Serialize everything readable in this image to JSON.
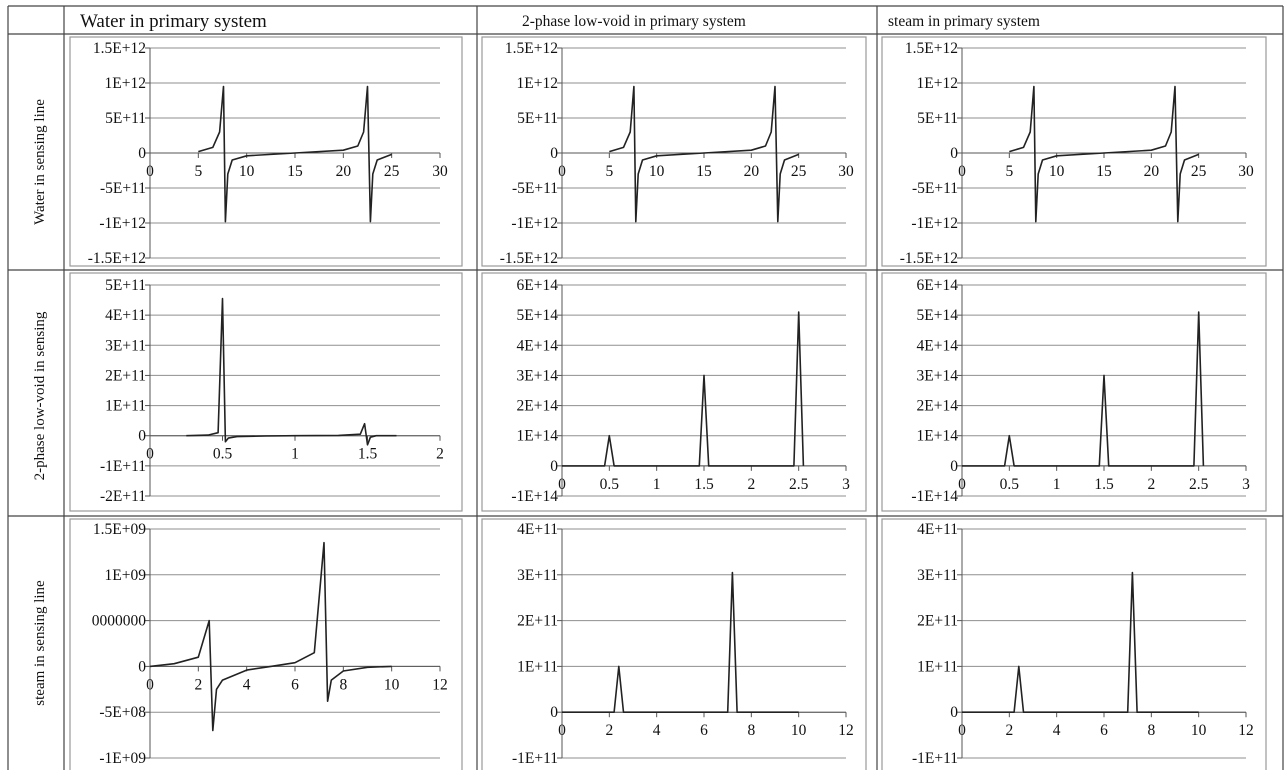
{
  "header": {
    "cols": [
      "Water in primary system",
      "2-phase low-void in primary system",
      "steam in primary system"
    ],
    "rows": [
      "Water in sensing line",
      "2-phase low-void in sensing",
      "steam in sensing line"
    ]
  },
  "colors": {
    "line": "#222222",
    "grid": "#8f8f8f",
    "border": "#555555",
    "frame": "#9a9a9a"
  },
  "chart_data": [
    {
      "type": "line",
      "row": 0,
      "col": 0,
      "title": "",
      "xlabel": "",
      "ylabel": "",
      "xlim": [
        0,
        30
      ],
      "ylim": [
        -1500000000000.0,
        1500000000000.0
      ],
      "x_ticks": [
        "0",
        "5",
        "10",
        "15",
        "20",
        "25",
        "30"
      ],
      "y_ticks": [
        "1.5E+12",
        "1E+12",
        "5E+11",
        "0",
        "-5E+11",
        "-1E+12",
        "-1.5E+12"
      ],
      "series": [
        {
          "x": [
            5,
            6.5,
            7.2,
            7.6,
            7.8,
            8.05,
            8.5,
            10,
            15,
            20,
            21.5,
            22.1,
            22.5,
            22.8,
            23.05,
            23.5,
            25
          ],
          "y": [
            20000000000.0,
            80000000000.0,
            300000000000.0,
            950000000000.0,
            -980000000000.0,
            -300000000000.0,
            -100000000000.0,
            -40000000000.0,
            0,
            40000000000.0,
            100000000000.0,
            300000000000.0,
            950000000000.0,
            -980000000000.0,
            -300000000000.0,
            -100000000000.0,
            -20000000000.0
          ]
        }
      ]
    },
    {
      "type": "line",
      "row": 0,
      "col": 1,
      "title": "",
      "xlabel": "",
      "ylabel": "",
      "xlim": [
        0,
        30
      ],
      "ylim": [
        -1500000000000.0,
        1500000000000.0
      ],
      "x_ticks": [
        "0",
        "5",
        "10",
        "15",
        "20",
        "25",
        "30"
      ],
      "y_ticks": [
        "1.5E+12",
        "1E+12",
        "5E+11",
        "0",
        "-5E+11",
        "-1E+12",
        "-1.5E+12"
      ],
      "series": [
        {
          "x": [
            5,
            6.5,
            7.2,
            7.6,
            7.8,
            8.05,
            8.5,
            10,
            15,
            20,
            21.5,
            22.1,
            22.5,
            22.8,
            23.05,
            23.5,
            25
          ],
          "y": [
            20000000000.0,
            80000000000.0,
            300000000000.0,
            950000000000.0,
            -980000000000.0,
            -300000000000.0,
            -100000000000.0,
            -40000000000.0,
            0,
            40000000000.0,
            100000000000.0,
            300000000000.0,
            950000000000.0,
            -980000000000.0,
            -300000000000.0,
            -100000000000.0,
            -20000000000.0
          ]
        }
      ]
    },
    {
      "type": "line",
      "row": 0,
      "col": 2,
      "title": "",
      "xlabel": "",
      "ylabel": "",
      "xlim": [
        0,
        30
      ],
      "ylim": [
        -1500000000000.0,
        1500000000000.0
      ],
      "x_ticks": [
        "0",
        "5",
        "10",
        "15",
        "20",
        "25",
        "30"
      ],
      "y_ticks": [
        "1.5E+12",
        "1E+12",
        "5E+11",
        "0",
        "-5E+11",
        "-1E+12",
        "-1.5E+12"
      ],
      "series": [
        {
          "x": [
            5,
            6.5,
            7.2,
            7.6,
            7.8,
            8.05,
            8.5,
            10,
            15,
            20,
            21.5,
            22.1,
            22.5,
            22.8,
            23.05,
            23.5,
            25
          ],
          "y": [
            20000000000.0,
            80000000000.0,
            300000000000.0,
            950000000000.0,
            -980000000000.0,
            -300000000000.0,
            -100000000000.0,
            -40000000000.0,
            0,
            40000000000.0,
            100000000000.0,
            300000000000.0,
            950000000000.0,
            -980000000000.0,
            -300000000000.0,
            -100000000000.0,
            -20000000000.0
          ]
        }
      ]
    },
    {
      "type": "line",
      "row": 1,
      "col": 0,
      "title": "",
      "xlabel": "",
      "ylabel": "",
      "xlim": [
        0,
        2
      ],
      "ylim": [
        -200000000000.0,
        500000000000.0
      ],
      "x_ticks": [
        "0",
        "0.5",
        "1",
        "1.5",
        "2"
      ],
      "y_ticks": [
        "5E+11",
        "4E+11",
        "3E+11",
        "2E+11",
        "1E+11",
        "0",
        "-1E+11",
        "-2E+11"
      ],
      "series": [
        {
          "x": [
            0.25,
            0.4,
            0.47,
            0.5,
            0.52,
            0.54,
            0.6,
            0.8,
            1.0,
            1.3,
            1.45,
            1.48,
            1.5,
            1.52,
            1.56,
            1.7
          ],
          "y": [
            0,
            2000000000.0,
            10000000000.0,
            455000000000.0,
            -20000000000.0,
            -8000000000.0,
            -3000000000.0,
            -1000000000.0,
            0,
            1000000000.0,
            5000000000.0,
            40000000000.0,
            -30000000000.0,
            -5000000000.0,
            0,
            0
          ]
        }
      ]
    },
    {
      "type": "line",
      "row": 1,
      "col": 1,
      "title": "",
      "xlabel": "",
      "ylabel": "",
      "xlim": [
        0,
        3
      ],
      "ylim": [
        -100000000000000.0,
        600000000000000.0
      ],
      "x_ticks": [
        "0",
        "0.5",
        "1",
        "1.5",
        "2",
        "2.5",
        "3"
      ],
      "y_ticks": [
        "6E+14",
        "5E+14",
        "4E+14",
        "3E+14",
        "2E+14",
        "1E+14",
        "0",
        "-1E+14"
      ],
      "series": [
        {
          "x": [
            0,
            0.45,
            0.5,
            0.55,
            1.45,
            1.5,
            1.55,
            2.45,
            2.5,
            2.55
          ],
          "y": [
            0,
            0,
            100000000000000.0,
            0,
            0,
            300000000000000.0,
            0,
            0,
            510000000000000.0,
            0
          ]
        }
      ]
    },
    {
      "type": "line",
      "row": 1,
      "col": 2,
      "title": "",
      "xlabel": "",
      "ylabel": "",
      "xlim": [
        0,
        3
      ],
      "ylim": [
        -100000000000000.0,
        600000000000000.0
      ],
      "x_ticks": [
        "0",
        "0.5",
        "1",
        "1.5",
        "2",
        "2.5",
        "3"
      ],
      "y_ticks": [
        "6E+14",
        "5E+14",
        "4E+14",
        "3E+14",
        "2E+14",
        "1E+14",
        "0",
        "-1E+14"
      ],
      "series": [
        {
          "x": [
            0,
            0.45,
            0.5,
            0.55,
            1.45,
            1.5,
            1.55,
            2.45,
            2.5,
            2.55
          ],
          "y": [
            0,
            0,
            100000000000000.0,
            0,
            0,
            300000000000000.0,
            0,
            0,
            510000000000000.0,
            0
          ]
        }
      ]
    },
    {
      "type": "line",
      "row": 2,
      "col": 0,
      "title": "",
      "xlabel": "",
      "ylabel": "",
      "xlim": [
        0,
        12
      ],
      "ylim": [
        -1000000000.0,
        1500000000.0
      ],
      "x_ticks": [
        "0",
        "2",
        "4",
        "6",
        "8",
        "10",
        "12"
      ],
      "y_ticks": [
        "1.5E+09",
        "1E+09",
        "0000000",
        "0",
        "-5E+08",
        "-1E+09"
      ],
      "series": [
        {
          "x": [
            0,
            1,
            2,
            2.45,
            2.6,
            2.75,
            3,
            4,
            5,
            6,
            6.8,
            7.2,
            7.35,
            7.5,
            8,
            9,
            10
          ],
          "y": [
            0,
            30000000.0,
            100000000.0,
            500000000.0,
            -700000000.0,
            -250000000.0,
            -150000000.0,
            -40000000.0,
            0,
            40000000.0,
            150000000.0,
            1350000000.0,
            -380000000.0,
            -150000000.0,
            -50000000.0,
            -10000000.0,
            0
          ]
        }
      ]
    },
    {
      "type": "line",
      "row": 2,
      "col": 1,
      "title": "",
      "xlabel": "",
      "ylabel": "",
      "xlim": [
        0,
        12
      ],
      "ylim": [
        -100000000000.0,
        400000000000.0
      ],
      "x_ticks": [
        "0",
        "2",
        "4",
        "6",
        "8",
        "10",
        "12"
      ],
      "y_ticks": [
        "4E+11",
        "3E+11",
        "2E+11",
        "1E+11",
        "0",
        "-1E+11"
      ],
      "series": [
        {
          "x": [
            0,
            2.2,
            2.4,
            2.6,
            7.0,
            7.2,
            7.4,
            10
          ],
          "y": [
            0,
            0,
            100000000000.0,
            0,
            0,
            305000000000.0,
            0,
            0
          ]
        }
      ]
    },
    {
      "type": "line",
      "row": 2,
      "col": 2,
      "title": "",
      "xlabel": "",
      "ylabel": "",
      "xlim": [
        0,
        12
      ],
      "ylim": [
        -100000000000.0,
        400000000000.0
      ],
      "x_ticks": [
        "0",
        "2",
        "4",
        "6",
        "8",
        "10",
        "12"
      ],
      "y_ticks": [
        "4E+11",
        "3E+11",
        "2E+11",
        "1E+11",
        "0",
        "-1E+11"
      ],
      "series": [
        {
          "x": [
            0,
            2.2,
            2.4,
            2.6,
            7.0,
            7.2,
            7.4,
            10
          ],
          "y": [
            0,
            0,
            100000000000.0,
            0,
            0,
            305000000000.0,
            0,
            0
          ]
        }
      ]
    }
  ]
}
